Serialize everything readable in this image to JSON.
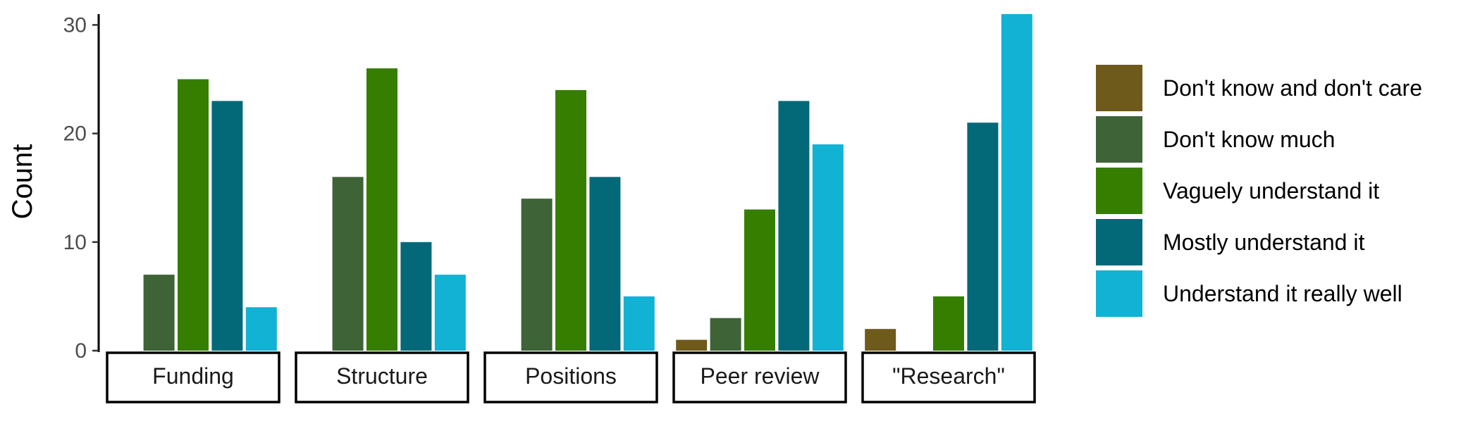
{
  "chart_data": {
    "type": "bar",
    "facets": [
      "Funding",
      "Structure",
      "Positions",
      "Peer review",
      "\"Research\""
    ],
    "series": [
      {
        "name": "Don't know and don't care",
        "color": "#6e5a1a",
        "values": [
          0,
          0,
          0,
          1,
          2
        ]
      },
      {
        "name": "Don't know much",
        "color": "#3e6337",
        "values": [
          7,
          16,
          14,
          3,
          0
        ]
      },
      {
        "name": "Vaguely understand it",
        "color": "#357e00",
        "values": [
          25,
          26,
          24,
          13,
          5
        ]
      },
      {
        "name": "Mostly understand it",
        "color": "#036978",
        "values": [
          23,
          10,
          16,
          23,
          21
        ]
      },
      {
        "name": "Understand it really well",
        "color": "#12b2d5",
        "values": [
          4,
          7,
          5,
          19,
          31
        ]
      }
    ],
    "ylabel": "Count",
    "ylim": [
      0,
      31
    ],
    "yticks": [
      "0",
      "10",
      "20",
      "30"
    ],
    "grid": false,
    "legend_position": "right"
  }
}
